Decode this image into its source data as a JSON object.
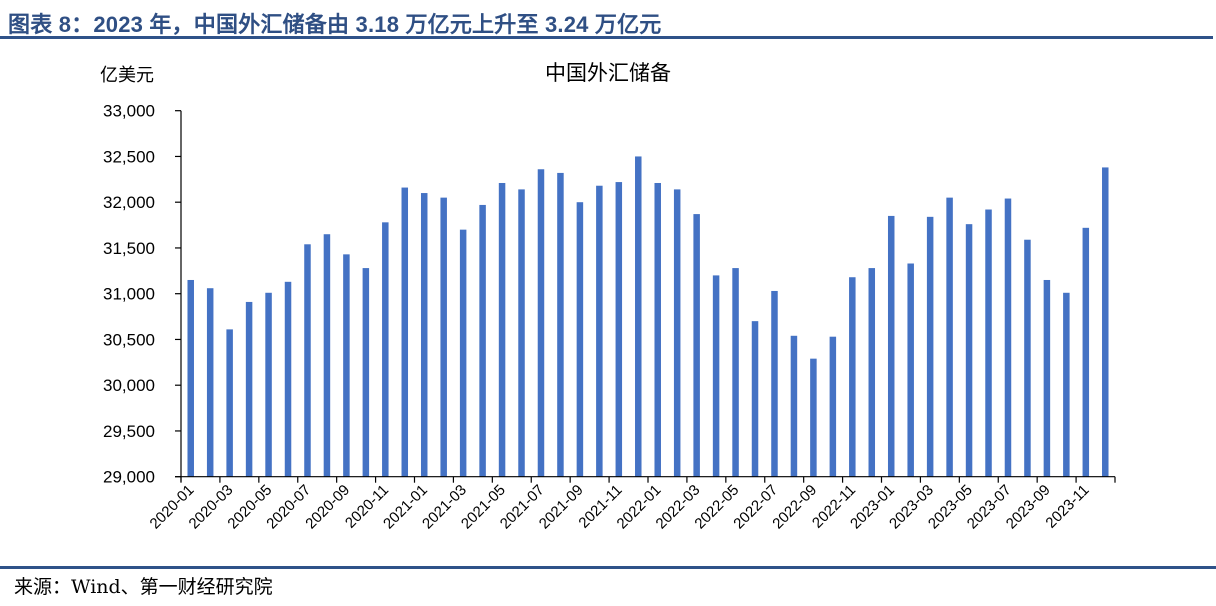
{
  "header": {
    "title": "图表 8：2023 年，中国外汇储备由 3.18 万亿元上升至 3.24 万亿元"
  },
  "footer": {
    "source": "来源：Wind、第一财经研究院"
  },
  "colors": {
    "bar": "#4472c4",
    "accent_rule": "#2f5289",
    "title_text": "#2f4f84",
    "axis": "#000000"
  },
  "chart_data": {
    "type": "bar",
    "title": "中国外汇储备",
    "ylabel": "亿美元",
    "xlabel": "",
    "ylim": [
      29000,
      33000
    ],
    "yticks": [
      29000,
      29500,
      30000,
      30500,
      31000,
      31500,
      32000,
      32500,
      33000
    ],
    "ytick_labels": [
      "29,000",
      "29,500",
      "30,000",
      "30,500",
      "31,000",
      "31,500",
      "32,000",
      "32,500",
      "33,000"
    ],
    "grid": false,
    "legend": null,
    "xtick_labels": [
      "2020-01",
      "2020-03",
      "2020-05",
      "2020-07",
      "2020-09",
      "2020-11",
      "2021-01",
      "2021-03",
      "2021-05",
      "2021-07",
      "2021-09",
      "2021-11",
      "2022-01",
      "2022-03",
      "2022-05",
      "2022-07",
      "2022-09",
      "2022-11",
      "2023-01",
      "2023-03",
      "2023-05",
      "2023-07",
      "2023-09",
      "2023-11"
    ],
    "categories": [
      "2020-01",
      "2020-02",
      "2020-03",
      "2020-04",
      "2020-05",
      "2020-06",
      "2020-07",
      "2020-08",
      "2020-09",
      "2020-10",
      "2020-11",
      "2020-12",
      "2021-01",
      "2021-02",
      "2021-03",
      "2021-04",
      "2021-05",
      "2021-06",
      "2021-07",
      "2021-08",
      "2021-09",
      "2021-10",
      "2021-11",
      "2021-12",
      "2022-01",
      "2022-02",
      "2022-03",
      "2022-04",
      "2022-05",
      "2022-06",
      "2022-07",
      "2022-08",
      "2022-09",
      "2022-10",
      "2022-11",
      "2022-12",
      "2023-01",
      "2023-02",
      "2023-03",
      "2023-04",
      "2023-05",
      "2023-06",
      "2023-07",
      "2023-08",
      "2023-09",
      "2023-10",
      "2023-11",
      "2023-12"
    ],
    "series": [
      {
        "name": "中国外汇储备",
        "values": [
          31150,
          31060,
          30610,
          30910,
          31010,
          31130,
          31540,
          31650,
          31430,
          31280,
          31780,
          32160,
          32100,
          32050,
          31700,
          31970,
          32210,
          32140,
          32360,
          32320,
          32000,
          32180,
          32220,
          32500,
          32210,
          32140,
          31870,
          31200,
          31280,
          30700,
          31030,
          30540,
          30290,
          30530,
          31180,
          31280,
          31850,
          31330,
          31840,
          32050,
          31760,
          31920,
          32040,
          31590,
          31150,
          31010,
          31720,
          32380
        ]
      }
    ]
  }
}
